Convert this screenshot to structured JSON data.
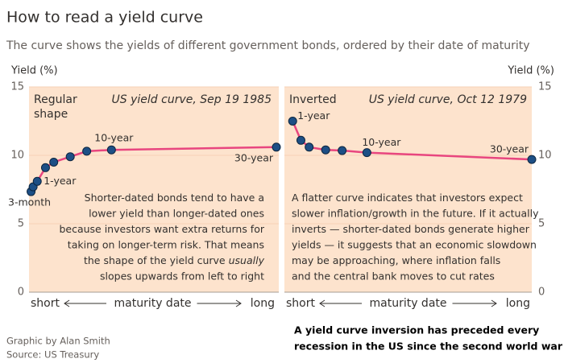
{
  "title": "How to read a yield curve",
  "subtitle": "The curve shows the yields of different government bonds, ordered by their date of maturity",
  "credit": "Graphic by Alan Smith",
  "source": "Source: US Treasury",
  "callout": [
    "A yield curve inversion has preceded every",
    "recession in the US since the second world war"
  ],
  "chart_data": [
    {
      "type": "line",
      "title": "US yield curve, Sep 19 1985",
      "label": [
        "Regular",
        "shape"
      ],
      "y_label": "Yield (%)",
      "y_axis_side": "left",
      "x_label": {
        "start": "short",
        "middle": "maturity date",
        "end": "long"
      },
      "x": [
        0.25,
        0.5,
        1,
        2,
        3,
        5,
        7,
        10,
        30
      ],
      "series": [
        {
          "color": "#e8467f",
          "marker_color": "#1d4f85",
          "values": [
            7.35,
            7.7,
            8.1,
            9.1,
            9.5,
            9.9,
            10.3,
            10.4,
            10.6
          ]
        }
      ],
      "point_labels": [
        "3-month",
        null,
        "1-year",
        null,
        null,
        null,
        null,
        "10-year",
        "30-year"
      ],
      "xlim": [
        0,
        30
      ],
      "ylim": [
        0,
        15
      ],
      "yticks": [
        0,
        5,
        10,
        15
      ],
      "grid": true,
      "note": {
        "align": "right",
        "lines": [
          {
            "text": "Shorter-dated bonds tend to have a"
          },
          {
            "text": "lower yield than longer-dated ones"
          },
          {
            "text": "because investors want extra returns for"
          },
          {
            "text": "taking on longer-term risk. That means"
          },
          {
            "text": "the shape of the yield curve",
            "emphasis": "usually"
          },
          {
            "text": "slopes upwards from left to right"
          }
        ]
      }
    },
    {
      "type": "line",
      "title": "US yield curve, Oct 12 1979",
      "label": [
        "Inverted"
      ],
      "y_label": "Yield (%)",
      "y_axis_side": "right",
      "x_label": {
        "start": "short",
        "middle": "maturity date",
        "end": "long"
      },
      "x": [
        1,
        2,
        3,
        5,
        7,
        10,
        30
      ],
      "series": [
        {
          "color": "#e8467f",
          "marker_color": "#1d4f85",
          "values": [
            12.5,
            11.1,
            10.6,
            10.4,
            10.35,
            10.2,
            9.7
          ]
        }
      ],
      "point_labels": [
        "1-year",
        null,
        null,
        null,
        null,
        "10-year",
        "30-year"
      ],
      "xlim": [
        0,
        30
      ],
      "ylim": [
        0,
        15
      ],
      "yticks": [
        0,
        5,
        10,
        15
      ],
      "grid": true,
      "note": {
        "align": "left",
        "lines": [
          {
            "text": "A flatter curve indicates that investors expect"
          },
          {
            "text": "slower inflation/growth in the future. If it actually"
          },
          {
            "text": "inverts — shorter-dated bonds generate higher"
          },
          {
            "text": "yields — it suggests that an economic slowdown"
          },
          {
            "text": "may be approaching, where inflation falls"
          },
          {
            "text": "and the central bank moves to cut rates"
          }
        ]
      }
    }
  ]
}
